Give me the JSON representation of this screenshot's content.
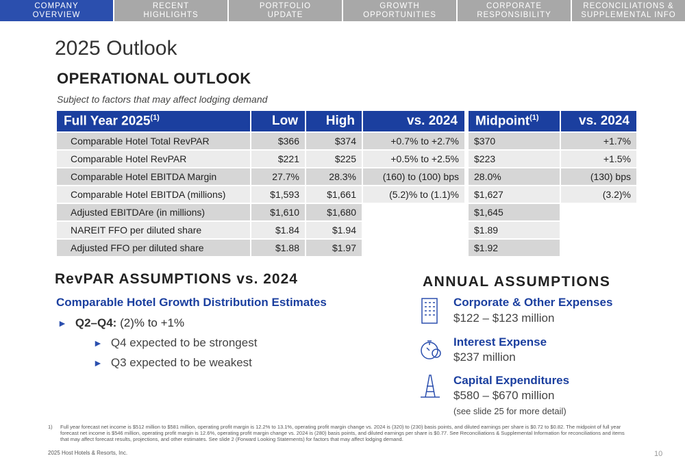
{
  "nav": [
    [
      "COMPANY",
      "OVERVIEW"
    ],
    [
      "RECENT",
      "HIGHLIGHTS"
    ],
    [
      "PORTFOLIO",
      "UPDATE"
    ],
    [
      "GROWTH",
      "OPPORTUNITIES"
    ],
    [
      "CORPORATE",
      "RESPONSIBILITY"
    ],
    [
      "RECONCILIATIONS &",
      "SUPPLEMENTAL INFO"
    ]
  ],
  "title": "2025 Outlook",
  "operational": {
    "heading": "OPERATIONAL OUTLOOK",
    "subtitle": "Subject to factors that may affect lodging demand",
    "left_header": [
      {
        "text": "Full Year 2025",
        "sup": "(1)"
      },
      {
        "text": "Low"
      },
      {
        "text": "High"
      },
      {
        "text": "vs. 2024"
      }
    ],
    "right_header": [
      {
        "text": "Midpoint",
        "sup": "(1)"
      },
      {
        "text": "vs. 2024"
      }
    ],
    "left_rows": [
      [
        "Comparable Hotel Total RevPAR",
        "$366",
        "$374",
        "+0.7% to +2.7%"
      ],
      [
        "Comparable Hotel RevPAR",
        "$221",
        "$225",
        "+0.5% to +2.5%"
      ],
      [
        "Comparable Hotel EBITDA Margin",
        "27.7%",
        "28.3%",
        "(160) to (100) bps"
      ],
      [
        "Comparable Hotel EBITDA (millions)",
        "$1,593",
        "$1,661",
        "(5.2)% to (1.1)%"
      ],
      [
        "Adjusted EBITDAre (in millions)",
        "$1,610",
        "$1,680"
      ],
      [
        "NAREIT FFO per diluted share",
        "$1.84",
        "$1.94"
      ],
      [
        "Adjusted FFO per diluted share",
        "$1.88",
        "$1.97"
      ]
    ],
    "right_rows": [
      [
        "$370",
        "+1.7%"
      ],
      [
        "$223",
        "+1.5%"
      ],
      [
        "28.0%",
        "(130) bps"
      ],
      [
        "$1,627",
        "(3.2)%"
      ],
      [
        "$1,645"
      ],
      [
        "$1.89"
      ],
      [
        "$1.92"
      ]
    ]
  },
  "revpar": {
    "heading": "RevPAR ASSUMPTIONS vs. 2024",
    "subheading": "Comparable Hotel Growth Distribution Estimates",
    "bullet": {
      "label": "Q2–Q4:",
      "text": "(2)% to +1%"
    },
    "sub_bullets": [
      "Q4 expected to be strongest",
      "Q3 expected to be weakest"
    ]
  },
  "annual": {
    "heading": "ANNUAL ASSUMPTIONS",
    "items": [
      {
        "title": "Corporate & Other Expenses",
        "value": "$122 – $123 million"
      },
      {
        "title": "Interest Expense",
        "value": "$237 million"
      },
      {
        "title": "Capital Expenditures",
        "value": "$580 – $670 million",
        "note": "(see slide 25 for more detail)"
      }
    ]
  },
  "footnote": {
    "marker": "1)",
    "text": "Full year forecast net income is $512 million to $581 million, operating profit margin is 12.2% to 13.1%, operating profit margin change vs. 2024 is (320) to (230) basis points, and diluted earnings per share is $0.72 to $0.82. The midpoint of full year forecast net income is $546 million, operating profit margin is 12.6%, operating profit margin change vs. 2024 is (280) basis points, and diluted earnings per share is $0.77. See Reconciliations & Supplemental Information for reconciliations and items that may affect forecast results, projections, and other estimates. See slide 2 (Forward Looking Statements) for factors that may affect lodging demand."
  },
  "footer": {
    "copyright": "2025 Host Hotels & Resorts, Inc.",
    "page": "10"
  }
}
